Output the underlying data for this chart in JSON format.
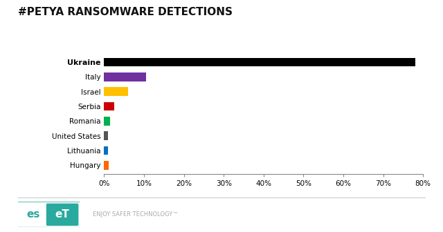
{
  "title": "#PETYA RANSOMWARE DETECTIONS",
  "countries": [
    "Ukraine",
    "Italy",
    "Israel",
    "Serbia",
    "Romania",
    "United States",
    "Lithuania",
    "Hungary"
  ],
  "values": [
    78,
    10.5,
    6.0,
    2.5,
    1.5,
    1.0,
    1.0,
    1.2
  ],
  "colors": [
    "#000000",
    "#7030a0",
    "#ffc000",
    "#cc0000",
    "#00b050",
    "#555555",
    "#0070c0",
    "#ff6600"
  ],
  "xlim": [
    0,
    80
  ],
  "xticks": [
    0,
    10,
    20,
    30,
    40,
    50,
    60,
    70,
    80
  ],
  "xtick_labels": [
    "0%",
    "10%",
    "20%",
    "30%",
    "40%",
    "50%",
    "60%",
    "70%",
    "80%"
  ],
  "background_color": "#ffffff",
  "title_fontsize": 11,
  "bar_height": 0.6,
  "eset_color": "#2aaa9e",
  "eset_text": "ENJOY SAFER TECHNOLOGY™"
}
